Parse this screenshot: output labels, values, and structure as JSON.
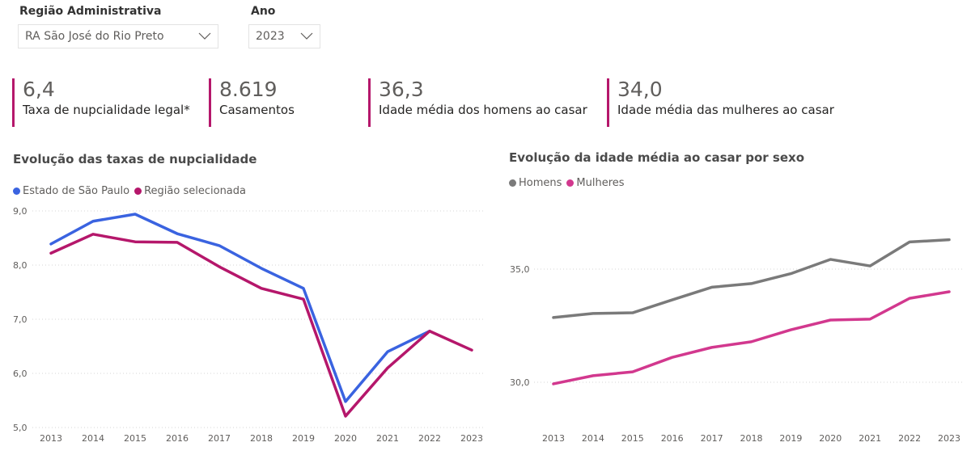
{
  "filters": {
    "region": {
      "label": "Região Administrativa",
      "value": "RA São José do Rio Preto",
      "icon": "chevron-down-icon"
    },
    "year": {
      "label": "Ano",
      "value": "2023",
      "icon": "chevron-down-icon"
    }
  },
  "kpis": [
    {
      "value": "6,4",
      "label": "Taxa de nupcialidade legal*"
    },
    {
      "value": "8.619",
      "label": "Casamentos"
    },
    {
      "value": "36,3",
      "label": "Idade média dos homens ao casar"
    },
    {
      "value": "34,0",
      "label": "Idade média das mulheres ao casar"
    }
  ],
  "colors": {
    "accent": "#b5176b",
    "sp": "#3a63e0",
    "region": "#b5176b",
    "men": "#7a7a7a",
    "women": "#d2388e"
  },
  "chart_data": [
    {
      "type": "line",
      "title": "Evolução das taxas de nupcialidade",
      "xlabel": "",
      "ylabel": "",
      "categories": [
        "2013",
        "2014",
        "2015",
        "2016",
        "2017",
        "2018",
        "2019",
        "2020",
        "2021",
        "2022",
        "2023"
      ],
      "ylim": [
        5.0,
        9.0
      ],
      "yticks": [
        5.0,
        6.0,
        7.0,
        8.0,
        9.0
      ],
      "ytick_labels": [
        "5,0",
        "6,0",
        "7,0",
        "8,0",
        "9,0"
      ],
      "grid": true,
      "legend_position": "top-left",
      "series": [
        {
          "name": "Estado de São Paulo",
          "color": "#3a63e0",
          "values": [
            8.39,
            8.81,
            8.94,
            8.58,
            8.36,
            7.94,
            7.57,
            5.48,
            6.4,
            6.78,
            null
          ]
        },
        {
          "name": "Região selecionada",
          "color": "#b5176b",
          "values": [
            8.22,
            8.57,
            8.43,
            8.42,
            7.97,
            7.57,
            7.37,
            5.21,
            6.1,
            6.78,
            6.43
          ]
        }
      ]
    },
    {
      "type": "line",
      "title": "Evolução da idade média ao casar por sexo",
      "xlabel": "",
      "ylabel": "",
      "categories": [
        "2013",
        "2014",
        "2015",
        "2016",
        "2017",
        "2018",
        "2019",
        "2020",
        "2021",
        "2022",
        "2023"
      ],
      "ylim": [
        28.0,
        37.0
      ],
      "yticks": [
        30.0,
        35.0
      ],
      "ytick_labels": [
        "30,0",
        "35,0"
      ],
      "grid": true,
      "legend_position": "top-left",
      "series": [
        {
          "name": "Homens",
          "color": "#7a7a7a",
          "values": [
            32.86,
            33.04,
            33.07,
            33.64,
            34.2,
            34.36,
            34.8,
            35.43,
            35.14,
            36.2,
            36.3
          ]
        },
        {
          "name": "Mulheres",
          "color": "#d2388e",
          "values": [
            29.93,
            30.29,
            30.46,
            31.1,
            31.54,
            31.79,
            32.32,
            32.75,
            32.79,
            33.71,
            34.0
          ]
        }
      ]
    }
  ]
}
